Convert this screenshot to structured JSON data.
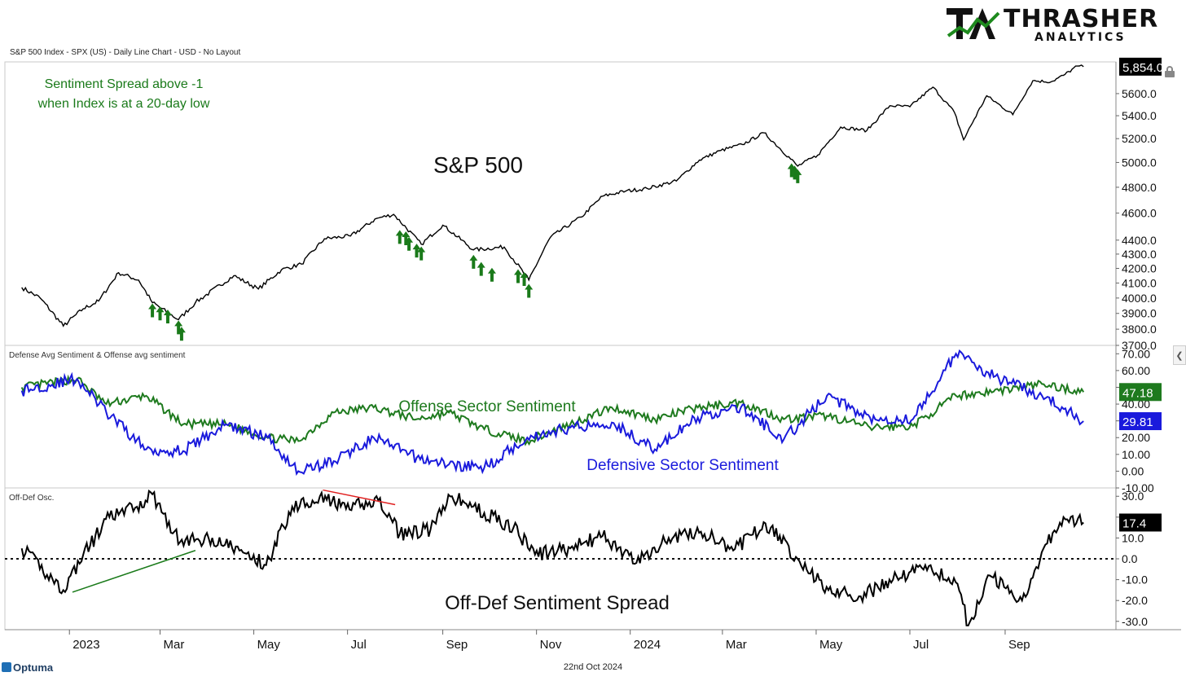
{
  "header": {
    "title": "S&P 500 Index - SPX (US) - Daily Line Chart - USD - No Layout"
  },
  "logo": {
    "name": "THRASHER",
    "sub": "ANALYTICS",
    "mark": "TA"
  },
  "footer": {
    "date": "22nd Oct 2024",
    "brand": "Optuma"
  },
  "colors": {
    "price": "#000000",
    "offense": "#1e7a1e",
    "defense": "#1a1adc",
    "signal": "#1a7a1a",
    "divergence_up": "#1a7a1a",
    "divergence_down": "#e02020",
    "offense_tag": "#1e7a1e",
    "defense_tag": "#1a1adc"
  },
  "chart_data": [
    {
      "type": "line",
      "panel": "price",
      "title": "S&P 500",
      "annotation": [
        "Sentiment Spread above -1",
        "when Index is at a 20-day low"
      ],
      "y_ticks": [
        "3700.0",
        "3800.0",
        "3900.0",
        "4000.0",
        "4100.0",
        "4200.0",
        "4300.0",
        "4400.0",
        "4600.0",
        "4800.0",
        "5000.0",
        "5200.0",
        "5400.0",
        "5600.0"
      ],
      "ylim": [
        3700,
        5900
      ],
      "scale": "log",
      "last_value_label": "5,854.0",
      "series": [
        {
          "name": "S&P 500",
          "x": [
            "2022-12-01",
            "2022-12-13",
            "2022-12-28",
            "2023-01-10",
            "2023-01-20",
            "2023-02-02",
            "2023-02-15",
            "2023-02-24",
            "2023-03-13",
            "2023-03-24",
            "2023-04-18",
            "2023-05-04",
            "2023-05-19",
            "2023-06-01",
            "2023-06-16",
            "2023-07-03",
            "2023-07-20",
            "2023-07-31",
            "2023-08-18",
            "2023-09-01",
            "2023-09-21",
            "2023-10-11",
            "2023-10-27",
            "2023-11-10",
            "2023-11-30",
            "2023-12-14",
            "2023-12-29",
            "2024-01-12",
            "2024-01-31",
            "2024-02-15",
            "2024-02-29",
            "2024-03-14",
            "2024-03-28",
            "2024-04-19",
            "2024-05-02",
            "2024-05-17",
            "2024-06-03",
            "2024-06-18",
            "2024-07-01",
            "2024-07-16",
            "2024-07-30",
            "2024-08-05",
            "2024-08-20",
            "2024-09-06",
            "2024-09-19",
            "2024-10-01",
            "2024-10-10",
            "2024-10-18",
            "2024-10-22"
          ],
          "values": [
            4070,
            4000,
            3820,
            3930,
            3980,
            4170,
            4120,
            3970,
            3860,
            3970,
            4150,
            4060,
            4190,
            4230,
            4410,
            4430,
            4560,
            4590,
            4370,
            4510,
            4330,
            4350,
            4120,
            4420,
            4570,
            4730,
            4770,
            4790,
            4850,
            5020,
            5100,
            5150,
            5250,
            4970,
            5060,
            5300,
            5270,
            5490,
            5480,
            5660,
            5430,
            5190,
            5580,
            5410,
            5720,
            5710,
            5780,
            5860,
            5854
          ]
        }
      ],
      "signals": [
        {
          "date": "2023-02-24",
          "value": 3970
        },
        {
          "date": "2023-03-01",
          "value": 3950
        },
        {
          "date": "2023-03-06",
          "value": 3930
        },
        {
          "date": "2023-03-13",
          "value": 3860
        },
        {
          "date": "2023-03-15",
          "value": 3820
        },
        {
          "date": "2023-08-04",
          "value": 4480
        },
        {
          "date": "2023-08-08",
          "value": 4470
        },
        {
          "date": "2023-08-10",
          "value": 4430
        },
        {
          "date": "2023-08-15",
          "value": 4380
        },
        {
          "date": "2023-08-18",
          "value": 4360
        },
        {
          "date": "2023-09-21",
          "value": 4300
        },
        {
          "date": "2023-09-26",
          "value": 4250
        },
        {
          "date": "2023-10-03",
          "value": 4210
        },
        {
          "date": "2023-10-20",
          "value": 4200
        },
        {
          "date": "2023-10-24",
          "value": 4180
        },
        {
          "date": "2023-10-27",
          "value": 4100
        },
        {
          "date": "2024-04-15",
          "value": 5000
        },
        {
          "date": "2024-04-17",
          "value": 4980
        },
        {
          "date": "2024-04-19",
          "value": 4950
        }
      ]
    },
    {
      "type": "line",
      "panel": "sentiment",
      "title": "Defense Avg Sentiment & Offense avg sentiment",
      "labels": {
        "offense": "Offense Sector Sentiment",
        "defense": "Defensive Sector Sentiment"
      },
      "y_ticks": [
        "-10.00",
        "0.00",
        "10.00",
        "20.00",
        "30.00",
        "40.00",
        "50.00",
        "60.00",
        "70.00"
      ],
      "ylim": [
        -10,
        75
      ],
      "series": [
        {
          "name": "Offense avg sentiment",
          "x": [
            "2022-12-01",
            "2023-01-06",
            "2023-01-25",
            "2023-02-20",
            "2023-03-16",
            "2023-04-13",
            "2023-05-10",
            "2023-05-30",
            "2023-06-22",
            "2023-07-18",
            "2023-08-15",
            "2023-09-05",
            "2023-09-28",
            "2023-10-26",
            "2023-11-23",
            "2023-12-20",
            "2024-01-17",
            "2024-02-14",
            "2024-03-13",
            "2024-04-10",
            "2024-05-08",
            "2024-06-05",
            "2024-07-03",
            "2024-07-31",
            "2024-08-28",
            "2024-09-25",
            "2024-10-22"
          ],
          "values": [
            50,
            55,
            40,
            45,
            28,
            28,
            20,
            18,
            35,
            38,
            31,
            35,
            25,
            18,
            28,
            38,
            31,
            38,
            41,
            31,
            33,
            26,
            27,
            45,
            48,
            52,
            47.18
          ]
        },
        {
          "name": "Defense Avg Sentiment",
          "x": [
            "2022-12-01",
            "2023-01-06",
            "2023-01-25",
            "2023-02-20",
            "2023-03-16",
            "2023-04-13",
            "2023-05-10",
            "2023-05-30",
            "2023-06-22",
            "2023-07-18",
            "2023-08-15",
            "2023-09-05",
            "2023-09-28",
            "2023-10-26",
            "2023-11-23",
            "2023-12-20",
            "2024-01-17",
            "2024-02-14",
            "2024-03-13",
            "2024-04-10",
            "2024-05-08",
            "2024-06-05",
            "2024-07-03",
            "2024-07-31",
            "2024-08-28",
            "2024-09-25",
            "2024-10-22"
          ],
          "values": [
            48,
            55,
            35,
            13,
            12,
            28,
            20,
            0,
            6,
            20,
            8,
            4,
            2,
            20,
            26,
            29,
            13,
            32,
            38,
            19,
            45,
            32,
            31,
            70,
            55,
            45,
            29.81
          ]
        }
      ]
    },
    {
      "type": "line",
      "panel": "oscillator",
      "title": "Off-Def Osc.",
      "label": "Off-Def Sentiment Spread",
      "y_ticks": [
        "-30.0",
        "-20.0",
        "-10.0",
        "0.0",
        "10.0",
        "20.0",
        "30.0"
      ],
      "ylim": [
        -34,
        34
      ],
      "zero_line": true,
      "last_value_label": "17.4",
      "series": [
        {
          "name": "Off-Def Osc.",
          "x": [
            "2022-12-01",
            "2022-12-28",
            "2023-01-10",
            "2023-01-27",
            "2023-02-14",
            "2023-02-24",
            "2023-03-14",
            "2023-04-04",
            "2023-04-24",
            "2023-05-09",
            "2023-05-26",
            "2023-06-13",
            "2023-06-30",
            "2023-07-21",
            "2023-08-04",
            "2023-08-24",
            "2023-09-07",
            "2023-09-28",
            "2023-10-17",
            "2023-10-31",
            "2023-11-23",
            "2023-12-14",
            "2024-01-05",
            "2024-01-26",
            "2024-02-16",
            "2024-03-08",
            "2024-03-29",
            "2024-04-19",
            "2024-05-09",
            "2024-05-30",
            "2024-06-20",
            "2024-07-11",
            "2024-08-01",
            "2024-08-08",
            "2024-08-22",
            "2024-09-12",
            "2024-09-26",
            "2024-10-09",
            "2024-10-22"
          ],
          "values": [
            5,
            -15,
            2,
            20,
            25,
            31,
            8,
            10,
            3,
            -3,
            25,
            30,
            24,
            28,
            12,
            14,
            30,
            22,
            15,
            2,
            5,
            11,
            -2,
            10,
            13,
            4,
            17,
            0,
            -15,
            -18,
            -10,
            -3,
            -12,
            -32,
            -8,
            -20,
            5,
            20,
            17.4
          ]
        }
      ],
      "divergences": [
        {
          "from": {
            "date": "2023-01-03",
            "value": -16
          },
          "to": {
            "date": "2023-03-24",
            "value": 4
          },
          "color": "up"
        },
        {
          "from": {
            "date": "2023-06-15",
            "value": 33
          },
          "to": {
            "date": "2023-08-01",
            "value": 26
          },
          "color": "down"
        }
      ]
    }
  ],
  "x_axis": {
    "start": "2022-11-20",
    "end": "2024-11-10",
    "ticks": [
      {
        "label": "2023",
        "date": "2023-01-01"
      },
      {
        "label": "Mar",
        "date": "2023-03-01"
      },
      {
        "label": "May",
        "date": "2023-05-01"
      },
      {
        "label": "Jul",
        "date": "2023-07-01"
      },
      {
        "label": "Sep",
        "date": "2023-09-01"
      },
      {
        "label": "Nov",
        "date": "2023-11-01"
      },
      {
        "label": "2024",
        "date": "2024-01-01"
      },
      {
        "label": "Mar",
        "date": "2024-03-01"
      },
      {
        "label": "May",
        "date": "2024-05-01"
      },
      {
        "label": "Jul",
        "date": "2024-07-01"
      },
      {
        "label": "Sep",
        "date": "2024-09-01"
      }
    ]
  },
  "value_tags": {
    "price": "5,854.0",
    "offense": "47.18",
    "defense": "29.81",
    "oscillator": "17.4"
  }
}
